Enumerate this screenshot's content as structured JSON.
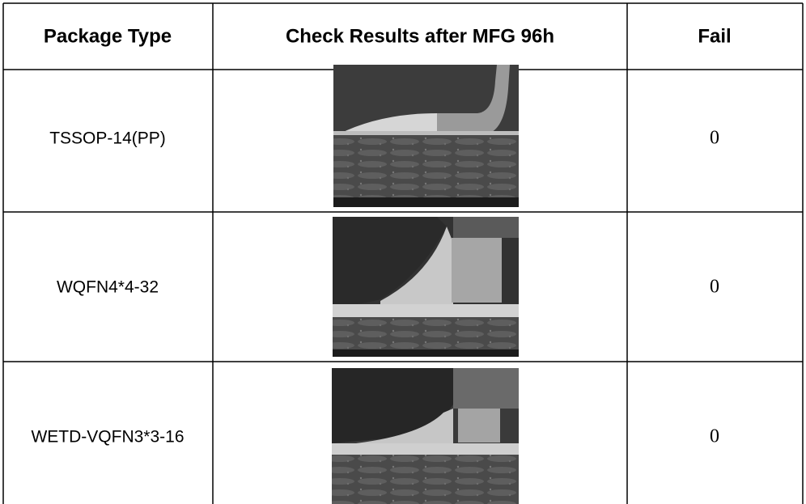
{
  "table": {
    "header": [
      "Package Type",
      "Check Results after MFG 96h",
      "Fail"
    ],
    "rows": [
      [
        "TSSOP-14(PP)",
        0
      ],
      [
        "WQFN4*4-32",
        0
      ],
      [
        "WETD-VQFN3*3-16",
        0
      ]
    ]
  }
}
